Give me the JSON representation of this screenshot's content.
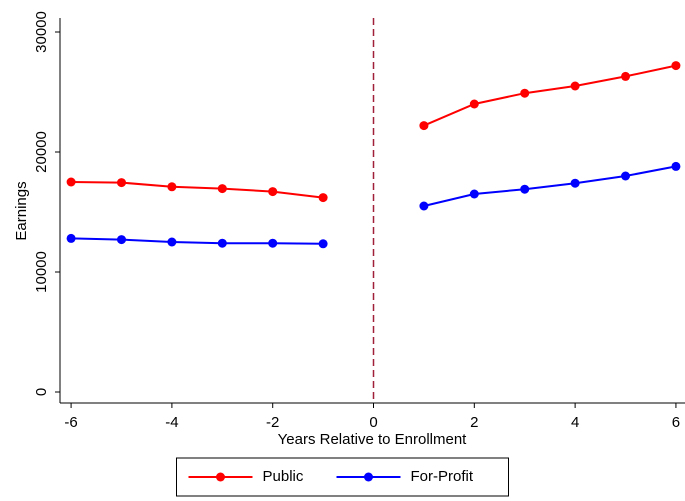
{
  "chart_data": {
    "type": "line",
    "x_label": "Years Relative to Enrollment",
    "y_label": "Earnings",
    "x": [
      -6,
      -5,
      -4,
      -3,
      -2,
      -1,
      0,
      1,
      2,
      3,
      4,
      5,
      6
    ],
    "series": [
      {
        "name": "Public",
        "color": "#ff0000",
        "values": [
          17500,
          17450,
          17100,
          16950,
          16700,
          16200,
          null,
          22200,
          24000,
          24900,
          25500,
          26300,
          27200
        ]
      },
      {
        "name": "For-Profit",
        "color": "#0000ff",
        "values": [
          12800,
          12700,
          12500,
          12400,
          12400,
          12350,
          null,
          15500,
          16500,
          16900,
          17400,
          18000,
          18800
        ]
      }
    ],
    "xlim": [
      -6.22,
      6.18
    ],
    "xticks": [
      -6,
      -4,
      -2,
      0,
      2,
      4,
      6
    ],
    "ylim": [
      -917,
      31167
    ],
    "yticks": [
      0,
      10000,
      20000,
      30000
    ],
    "vline": 0,
    "vline_color": "#a0203a",
    "grid": false,
    "legend": "bottom"
  }
}
